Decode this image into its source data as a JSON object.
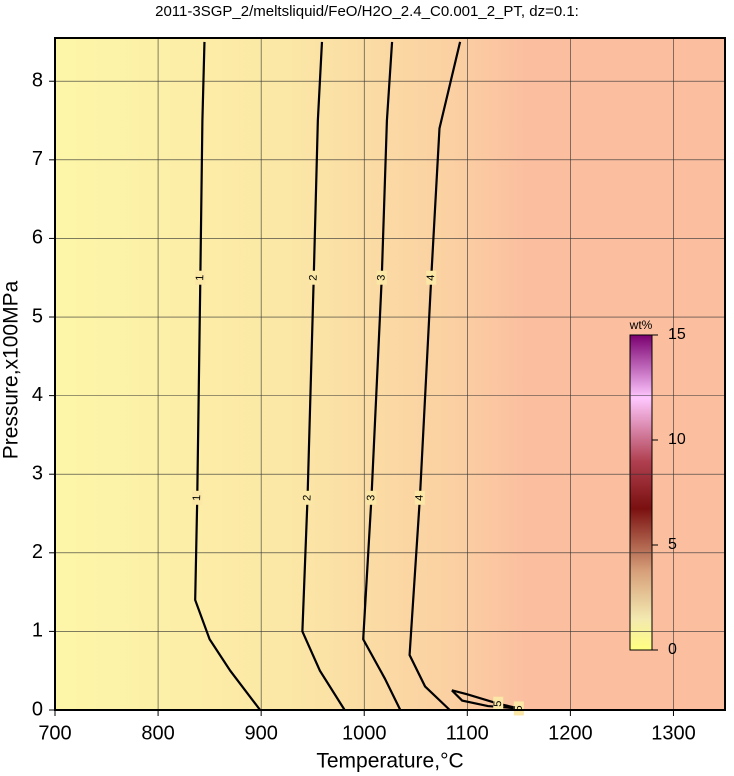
{
  "chart_data": {
    "type": "contour",
    "title": "2011-3SGP_2/meltsliquid/FeO/H2O_2.4_C0.001_2_PT, dz=0.1:",
    "xlabel": "Temperature,°C",
    "ylabel": "Pressure,x100MPa",
    "xlim": [
      700,
      1350
    ],
    "xticks": [
      700,
      800,
      900,
      1000,
      1100,
      1200,
      1300
    ],
    "ylim": [
      0,
      8.55
    ],
    "yticks": [
      0,
      1,
      2,
      3,
      4,
      5,
      6,
      7,
      8
    ],
    "grid": true,
    "contours": [
      {
        "level": 1,
        "x": [
          845,
          843,
          841,
          838,
          836,
          850,
          870,
          899
        ],
        "y": [
          8.5,
          7.5,
          5.5,
          2.7,
          1.4,
          0.9,
          0.5,
          0
        ]
      },
      {
        "level": 2,
        "x": [
          959,
          955,
          951,
          945,
          940,
          957,
          981
        ],
        "y": [
          8.5,
          7.5,
          5.5,
          2.7,
          1.0,
          0.5,
          0
        ]
      },
      {
        "level": 3,
        "x": [
          1027,
          1022,
          1017,
          1007,
          999,
          1020,
          1035
        ],
        "y": [
          8.5,
          7.5,
          5.5,
          2.7,
          0.9,
          0.4,
          0
        ]
      },
      {
        "level": 4,
        "x": [
          1093,
          1073,
          1065,
          1054,
          1044,
          1059,
          1083
        ],
        "y": [
          8.5,
          7.4,
          5.5,
          2.7,
          0.7,
          0.3,
          0
        ]
      },
      {
        "level": 5,
        "x": [
          1085,
          1100,
          1130,
          1150,
          1120,
          1095,
          1085
        ],
        "y": [
          0.25,
          0.2,
          0.08,
          0.02,
          0.05,
          0.12,
          0.25
        ]
      }
    ],
    "colorbar": {
      "title": "wt%",
      "lim": [
        0,
        15
      ],
      "ticks": [
        0,
        5,
        10,
        15
      ]
    }
  }
}
